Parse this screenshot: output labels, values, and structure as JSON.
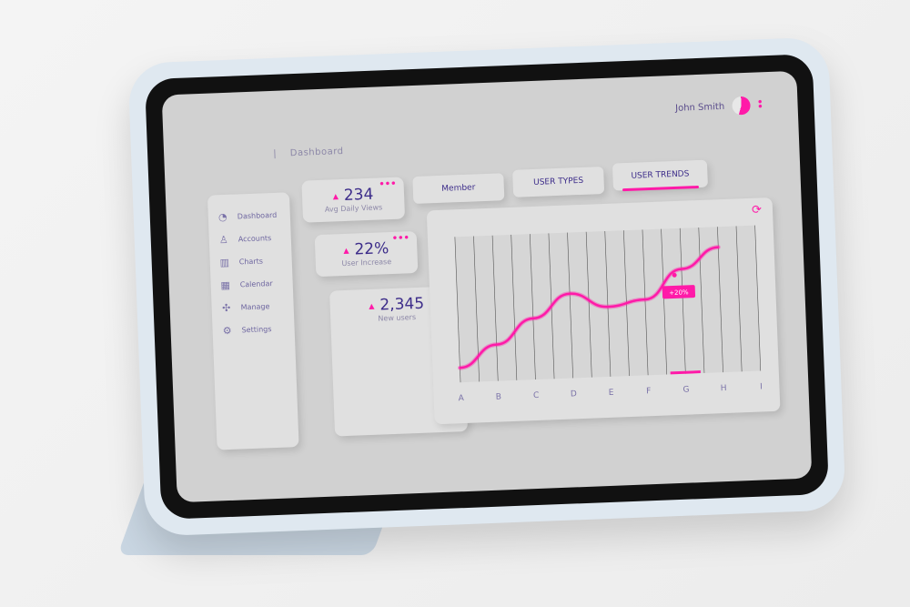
{
  "header": {
    "user_name": "John Smith",
    "breadcrumb": "Dashboard"
  },
  "sidebar": {
    "items": [
      {
        "label": "Dashboard",
        "icon": "pie-chart-icon",
        "glyph": "◔"
      },
      {
        "label": "Accounts",
        "icon": "user-icon",
        "glyph": "♙"
      },
      {
        "label": "Charts",
        "icon": "bar-chart-icon",
        "glyph": "▥"
      },
      {
        "label": "Calendar",
        "icon": "calendar-icon",
        "glyph": "▦"
      },
      {
        "label": "Manage",
        "icon": "move-icon",
        "glyph": "✣"
      },
      {
        "label": "Settings",
        "icon": "gear-icon",
        "glyph": "⚙"
      }
    ]
  },
  "stats": [
    {
      "value": "234",
      "label": "Avg Daily Views"
    },
    {
      "value": "22%",
      "label": "User Increase"
    },
    {
      "value": "2,345",
      "label": "New users"
    }
  ],
  "tabs": [
    {
      "label": "Member"
    },
    {
      "label": "USER TYPES"
    },
    {
      "label": "USER TRENDS",
      "active": true
    }
  ],
  "colors": {
    "accent": "#ff1aa8",
    "text": "#3d2d8a",
    "screen": "#d1d1d1"
  },
  "chart_data": {
    "type": "line",
    "categories": [
      "A",
      "B",
      "C",
      "D",
      "E",
      "F",
      "G",
      "H",
      "I"
    ],
    "values": [
      10,
      25,
      42,
      58,
      48,
      52,
      72,
      86,
      null
    ],
    "tooltip": {
      "label": "+20%",
      "category": "G"
    },
    "highlight": "G",
    "grid": true
  }
}
